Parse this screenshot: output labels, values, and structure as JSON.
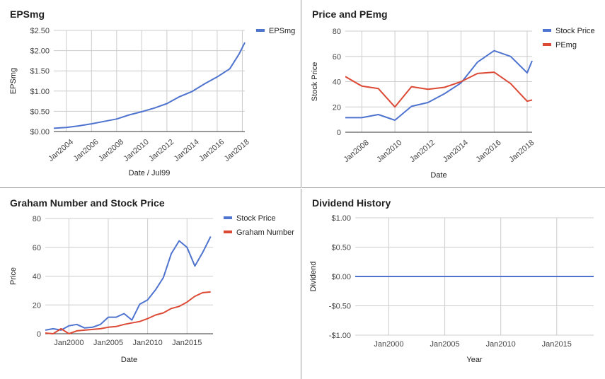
{
  "chart_data": [
    {
      "type": "line",
      "title": "EPSmg",
      "xlabel": "Date / Jul99",
      "ylabel": "EPSmg",
      "ylim": [
        0,
        2.5
      ],
      "yticks": [
        "$0.00",
        "$0.50",
        "$1.00",
        "$1.50",
        "$2.00",
        "$2.50"
      ],
      "xlim": [
        2003,
        2018.2
      ],
      "xticks": [
        "Jan2004",
        "Jan2006",
        "Jan2008",
        "Jan2010",
        "Jan2012",
        "Jan2014",
        "Jan2016",
        "Jan2018"
      ],
      "legend": "right",
      "series": [
        {
          "name": "EPSmg",
          "color": "#4f74cf",
          "x": [
            2003,
            2004,
            2005,
            2006,
            2007,
            2008,
            2009,
            2010,
            2011,
            2012,
            2013,
            2014,
            2015,
            2016,
            2017,
            2017.75,
            2018.2
          ],
          "y": [
            0.08,
            0.1,
            0.14,
            0.19,
            0.25,
            0.31,
            0.41,
            0.49,
            0.58,
            0.69,
            0.86,
            0.99,
            1.18,
            1.35,
            1.55,
            1.92,
            2.2
          ]
        }
      ]
    },
    {
      "type": "line",
      "title": "Price and PEmg",
      "xlabel": "Date",
      "ylabel": "Stock Price",
      "ylim": [
        0,
        80
      ],
      "yticks": [
        "0",
        "20",
        "40",
        "60",
        "80"
      ],
      "xlim": [
        2007,
        2018.3
      ],
      "xticks": [
        "Jan2008",
        "Jan2010",
        "Jan2012",
        "Jan2014",
        "Jan2016",
        "Jan2018"
      ],
      "legend": "right",
      "series": [
        {
          "name": "Stock Price",
          "color": "#4f74cf",
          "x": [
            2007,
            2008,
            2009,
            2010,
            2011,
            2012,
            2013,
            2014,
            2015,
            2016,
            2017,
            2018,
            2018.3
          ],
          "y": [
            11.5,
            11.5,
            14,
            9.5,
            20.5,
            23.5,
            30.5,
            39,
            55.5,
            64.5,
            60,
            47,
            56.5
          ]
        },
        {
          "name": "PEmg",
          "color": "#dc4a36",
          "x": [
            2007,
            2008,
            2009,
            2010,
            2011,
            2012,
            2013,
            2014,
            2015,
            2016,
            2017,
            2018,
            2018.3
          ],
          "y": [
            44,
            36.5,
            34.5,
            20,
            36,
            34,
            35.5,
            40,
            46.5,
            47.5,
            38.5,
            24.5,
            25.5
          ]
        }
      ]
    },
    {
      "type": "line",
      "title": "Graham Number and Stock Price",
      "xlabel": "Date",
      "ylabel": "Price",
      "ylim": [
        0,
        80
      ],
      "yticks": [
        "0",
        "20",
        "40",
        "60",
        "80"
      ],
      "xlim": [
        1997,
        2018.3
      ],
      "xticks": [
        "Jan2000",
        "Jan2005",
        "Jan2010",
        "Jan2015"
      ],
      "legend": "right",
      "series": [
        {
          "name": "Stock Price",
          "color": "#4f74cf",
          "x": [
            1997,
            1998,
            1999,
            2000,
            2001,
            2002,
            2003,
            2004,
            2005,
            2006,
            2007,
            2008,
            2009,
            2010,
            2011,
            2012,
            2013,
            2014,
            2015,
            2016,
            2017,
            2018
          ],
          "y": [
            2.5,
            3.5,
            2.5,
            5.5,
            6.5,
            4,
            4.5,
            6.5,
            11.5,
            11.5,
            14,
            9.5,
            20.5,
            23.5,
            30.5,
            39,
            55.5,
            64.5,
            60,
            47,
            56.5,
            67.5
          ]
        },
        {
          "name": "Graham Number",
          "color": "#dc4a36",
          "x": [
            1997,
            1998,
            1999,
            2000,
            2001,
            2002,
            2003,
            2004,
            2005,
            2006,
            2007,
            2008,
            2009,
            2010,
            2011,
            2012,
            2013,
            2014,
            2015,
            2016,
            2017,
            2018
          ],
          "y": [
            0.5,
            0,
            3.5,
            0,
            2,
            2.5,
            3,
            3.5,
            4.5,
            5,
            6.5,
            7.5,
            8.5,
            10.5,
            13,
            14.5,
            17.5,
            19,
            22,
            26,
            28.5,
            29
          ]
        }
      ]
    },
    {
      "type": "line",
      "title": "Dividend History",
      "xlabel": "Year",
      "ylabel": "Dividend",
      "ylim": [
        -1,
        1
      ],
      "yticks": [
        "-$1.00",
        "-$0.50",
        "$0.00",
        "$0.50",
        "$1.00"
      ],
      "xlim": [
        1997,
        2018.3
      ],
      "xticks": [
        "Jan2000",
        "Jan2005",
        "Jan2010",
        "Jan2015"
      ],
      "legend": "none",
      "series": [
        {
          "name": "",
          "color": "#4f74cf",
          "x": [
            1997,
            2018.3
          ],
          "y": [
            0,
            0
          ]
        }
      ]
    }
  ]
}
